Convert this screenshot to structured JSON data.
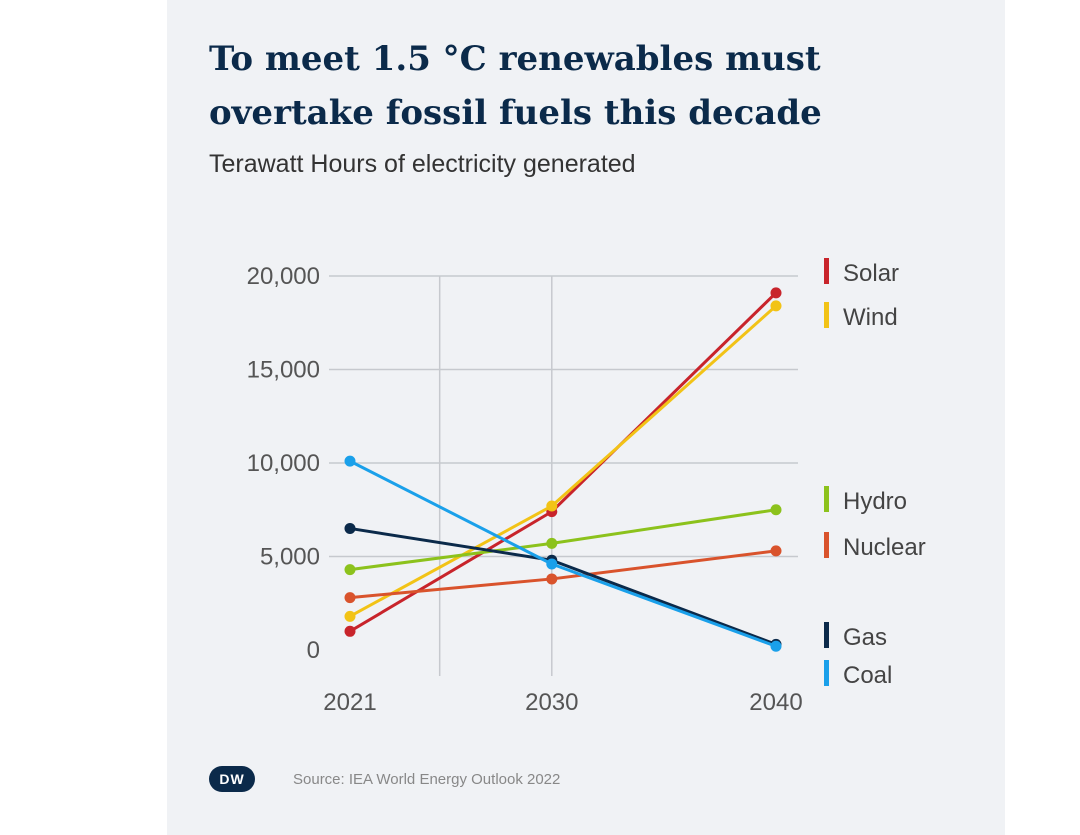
{
  "chart_data": {
    "type": "line",
    "title": "To meet 1.5 °C renewables must overtake fossil fuels this decade",
    "subtitle": "Terawatt Hours of electricity generated",
    "x": [
      "2021",
      "2030",
      "2040"
    ],
    "ylim": [
      0,
      20000
    ],
    "y_ticks": [
      0,
      5000,
      10000,
      15000,
      20000
    ],
    "y_tick_labels": [
      "0",
      "5,000",
      "10,000",
      "15,000",
      "20,000"
    ],
    "series": [
      {
        "name": "Solar",
        "color": "#c8242b",
        "values": [
          1000,
          7400,
          19100
        ]
      },
      {
        "name": "Wind",
        "color": "#f2c316",
        "values": [
          1800,
          7700,
          18400
        ]
      },
      {
        "name": "Hydro",
        "color": "#8cc21c",
        "values": [
          4300,
          5700,
          7500
        ]
      },
      {
        "name": "Nuclear",
        "color": "#d9532c",
        "values": [
          2800,
          3800,
          5300
        ]
      },
      {
        "name": "Gas",
        "color": "#0b2a4a",
        "values": [
          6500,
          4800,
          300
        ]
      },
      {
        "name": "Coal",
        "color": "#1aa0ea",
        "values": [
          10100,
          4600,
          200
        ]
      }
    ],
    "source": "Source: IEA World Energy Outlook 2022",
    "logo_text": "DW"
  }
}
